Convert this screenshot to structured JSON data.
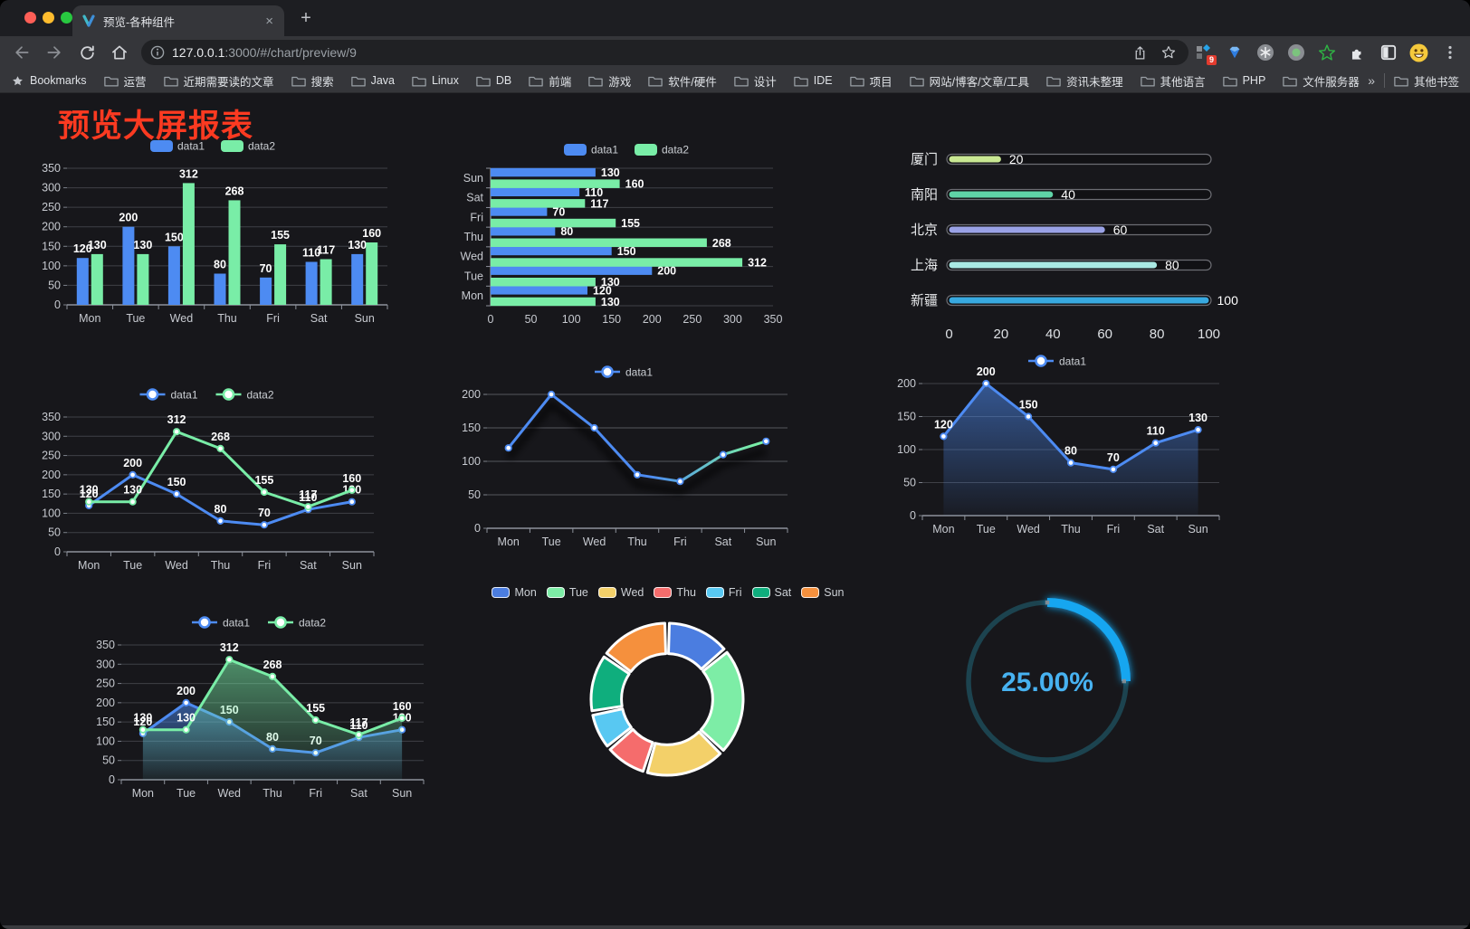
{
  "browser": {
    "tab": {
      "title": "预览-各种组件",
      "close": "×",
      "new_tab": "+"
    },
    "url": {
      "host": "127.0.0.1",
      "rest": ":3000/#/chart/preview/9"
    },
    "bookmarks_label": "Bookmarks",
    "bookmarks": [
      "运营",
      "近期需要读的文章",
      "搜索",
      "Java",
      "Linux",
      "DB",
      "前端",
      "游戏",
      "软件/硬件",
      "设计",
      "IDE",
      "项目",
      "网站/博客/文章/工具",
      "资讯未整理",
      "其他语言",
      "PHP",
      "文件服务器"
    ],
    "bookmarks_overflow": "»",
    "other_bookmarks": "其他书签",
    "extension_badge": "9"
  },
  "page": {
    "title": "预览大屏报表"
  },
  "chart_data": [
    {
      "type": "bar",
      "orientation": "vertical",
      "categories": [
        "Mon",
        "Tue",
        "Wed",
        "Thu",
        "Fri",
        "Sat",
        "Sun"
      ],
      "series": [
        {
          "name": "data1",
          "color": "#4d8bf2",
          "values": [
            120,
            200,
            150,
            80,
            70,
            110,
            130
          ]
        },
        {
          "name": "data2",
          "color": "#79eda7",
          "values": [
            130,
            130,
            312,
            268,
            155,
            117,
            160
          ]
        }
      ],
      "ylim": [
        0,
        350
      ],
      "yticks": [
        0,
        50,
        100,
        150,
        200,
        250,
        300,
        350
      ],
      "legend": "top",
      "value_labels": true,
      "grid": true
    },
    {
      "type": "bar",
      "orientation": "horizontal",
      "categories": [
        "Mon",
        "Tue",
        "Wed",
        "Thu",
        "Fri",
        "Sat",
        "Sun"
      ],
      "series": [
        {
          "name": "data1",
          "color": "#4d8bf2",
          "values": [
            120,
            200,
            150,
            80,
            70,
            110,
            130
          ]
        },
        {
          "name": "data2",
          "color": "#79eda7",
          "values": [
            130,
            130,
            312,
            268,
            155,
            117,
            160
          ]
        }
      ],
      "xlim": [
        0,
        350
      ],
      "xticks": [
        0,
        50,
        100,
        150,
        200,
        250,
        300,
        350
      ],
      "legend": "top",
      "value_labels": true,
      "grid": true
    },
    {
      "type": "progress-bars",
      "max": 100,
      "rows": [
        {
          "label": "厦门",
          "value": 20,
          "color": "#c9e893"
        },
        {
          "label": "南阳",
          "value": 40,
          "color": "#5fd3a7"
        },
        {
          "label": "北京",
          "value": 60,
          "color": "#9aa2e6"
        },
        {
          "label": "上海",
          "value": 80,
          "color": "#a9e9e3"
        },
        {
          "label": "新疆",
          "value": 100,
          "color": "#38a9e0"
        }
      ],
      "axis_ticks": [
        0,
        20,
        40,
        60,
        80,
        100
      ]
    },
    {
      "type": "line",
      "categories": [
        "Mon",
        "Tue",
        "Wed",
        "Thu",
        "Fri",
        "Sat",
        "Sun"
      ],
      "series": [
        {
          "name": "data1",
          "color": "#4d8bf2",
          "values": [
            120,
            200,
            150,
            80,
            70,
            110,
            130
          ]
        },
        {
          "name": "data2",
          "color": "#79eda7",
          "values": [
            130,
            130,
            312,
            268,
            155,
            117,
            160
          ]
        }
      ],
      "ylim": [
        0,
        350
      ],
      "yticks": [
        0,
        50,
        100,
        150,
        200,
        250,
        300,
        350
      ],
      "legend": "top",
      "value_labels": true,
      "markers": true
    },
    {
      "type": "line",
      "categories": [
        "Mon",
        "Tue",
        "Wed",
        "Thu",
        "Fri",
        "Sat",
        "Sun"
      ],
      "series": [
        {
          "name": "data1",
          "color": "#4d8bf2",
          "color2": "#79eda7",
          "values": [
            120,
            200,
            150,
            80,
            70,
            110,
            130
          ]
        }
      ],
      "ylim": [
        0,
        200
      ],
      "yticks": [
        0,
        50,
        100,
        150,
        200
      ],
      "legend": "top",
      "value_labels": false,
      "markers": true,
      "gradient": true,
      "shadow": true
    },
    {
      "type": "area",
      "categories": [
        "Mon",
        "Tue",
        "Wed",
        "Thu",
        "Fri",
        "Sat",
        "Sun"
      ],
      "series": [
        {
          "name": "data1",
          "color": "#4d8bf2",
          "values": [
            120,
            200,
            150,
            80,
            70,
            110,
            130
          ]
        }
      ],
      "ylim": [
        0,
        200
      ],
      "yticks": [
        0,
        50,
        100,
        150,
        200
      ],
      "legend": "top",
      "value_labels": true,
      "markers": true
    },
    {
      "type": "area",
      "categories": [
        "Mon",
        "Tue",
        "Wed",
        "Thu",
        "Fri",
        "Sat",
        "Sun"
      ],
      "series": [
        {
          "name": "data1",
          "color": "#4d8bf2",
          "values": [
            120,
            200,
            150,
            80,
            70,
            110,
            130
          ]
        },
        {
          "name": "data2",
          "color": "#79eda7",
          "values": [
            130,
            130,
            312,
            268,
            155,
            117,
            160
          ]
        }
      ],
      "ylim": [
        0,
        350
      ],
      "yticks": [
        0,
        50,
        100,
        150,
        200,
        250,
        300,
        350
      ],
      "legend": "top",
      "value_labels": true,
      "markers": true
    },
    {
      "type": "pie",
      "inner_radius_ratio": 0.6,
      "categories": [
        "Mon",
        "Tue",
        "Wed",
        "Thu",
        "Fri",
        "Sat",
        "Sun"
      ],
      "values": [
        120,
        200,
        150,
        80,
        70,
        110,
        130
      ],
      "colors": [
        "#4b7de0",
        "#7deda6",
        "#f3d069",
        "#f56c6c",
        "#58c8f2",
        "#0fae7d",
        "#f5903d"
      ],
      "legend_position": "top"
    },
    {
      "type": "gauge",
      "value": 25,
      "label": "25.00%",
      "color": "#16a6f0",
      "track_color": "#1c434f"
    }
  ]
}
